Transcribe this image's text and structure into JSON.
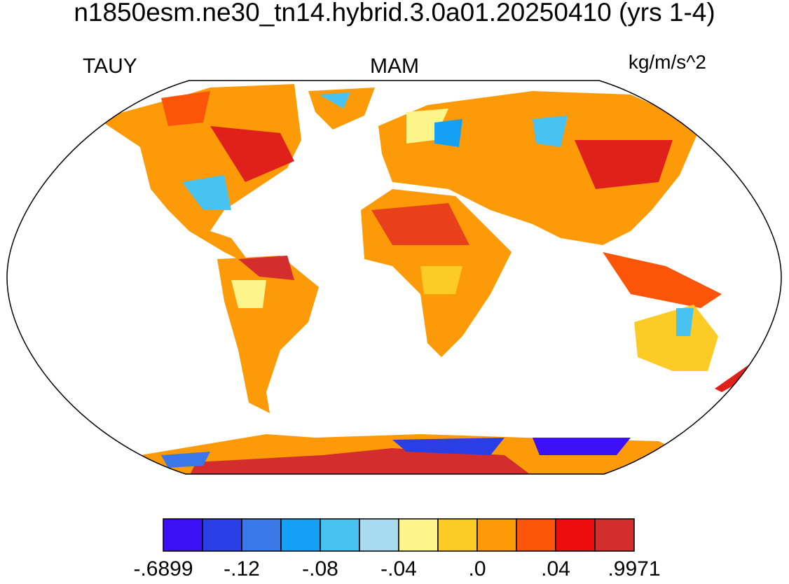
{
  "header": {
    "title": "n1850esm.ne30_tn14.hybrid.3.0a01.20250410 (yrs 1-4)"
  },
  "panel": {
    "left_label": "TAUY",
    "center_label": "MAM",
    "right_label": "kg/m/s^2"
  },
  "colorbar": {
    "colors": [
      "#3d10f5",
      "#2a3ee6",
      "#3a78e8",
      "#14a0f5",
      "#48c2f0",
      "#a8daf0",
      "#fdf58c",
      "#fdcb26",
      "#fd9a08",
      "#fc5408",
      "#ee0d0d",
      "#d32d2d"
    ],
    "labels": [
      "-.6899",
      "-.12",
      "-.08",
      "-.04",
      ".0",
      ".04",
      ".9971"
    ]
  }
}
